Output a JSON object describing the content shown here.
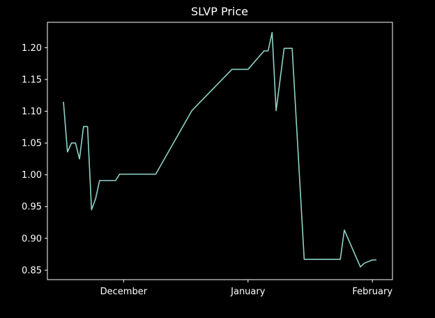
{
  "chart_data": {
    "type": "line",
    "title": "SLVP Price",
    "xlabel": "",
    "ylabel": "",
    "x_tick_labels": [
      "December",
      "January",
      "February"
    ],
    "x_tick_dates": [
      "2021-12-01",
      "2022-01-01",
      "2022-02-01"
    ],
    "y_ticks": [
      0.85,
      0.9,
      0.95,
      1.0,
      1.05,
      1.1,
      1.15,
      1.2
    ],
    "y_tick_labels": [
      "0.85",
      "0.90",
      "0.95",
      "1.00",
      "1.05",
      "1.10",
      "1.15",
      "1.20"
    ],
    "xlim": [
      "2021-11-12",
      "2022-02-06"
    ],
    "ylim": [
      0.835,
      1.24
    ],
    "grid": false,
    "colors": {
      "background": "#000000",
      "line": "#8dd3c7",
      "text": "#ffffff",
      "axes": "#ffffff"
    },
    "series": [
      {
        "x": [
          "2021-11-16",
          "2021-11-17",
          "2021-11-18",
          "2021-11-19",
          "2021-11-20",
          "2021-11-21",
          "2021-11-22",
          "2021-11-23",
          "2021-11-24",
          "2021-11-25",
          "2021-11-26",
          "2021-11-27",
          "2021-11-29",
          "2021-11-30",
          "2021-12-01",
          "2021-12-09",
          "2021-12-18",
          "2021-12-28",
          "2022-01-01",
          "2022-01-05",
          "2022-01-06",
          "2022-01-07",
          "2022-01-08",
          "2022-01-10",
          "2022-01-12",
          "2022-01-15",
          "2022-01-21",
          "2022-01-24",
          "2022-01-25",
          "2022-01-29",
          "2022-01-30",
          "2022-02-01",
          "2022-02-02"
        ],
        "values": [
          1.115,
          1.036,
          1.05,
          1.05,
          1.025,
          1.076,
          1.076,
          0.945,
          0.962,
          0.991,
          0.991,
          0.991,
          0.991,
          1.001,
          1.001,
          1.001,
          1.101,
          1.166,
          1.166,
          1.195,
          1.195,
          1.224,
          1.101,
          1.199,
          1.199,
          0.867,
          0.867,
          0.867,
          0.913,
          0.855,
          0.861,
          0.866,
          0.866
        ]
      }
    ]
  }
}
